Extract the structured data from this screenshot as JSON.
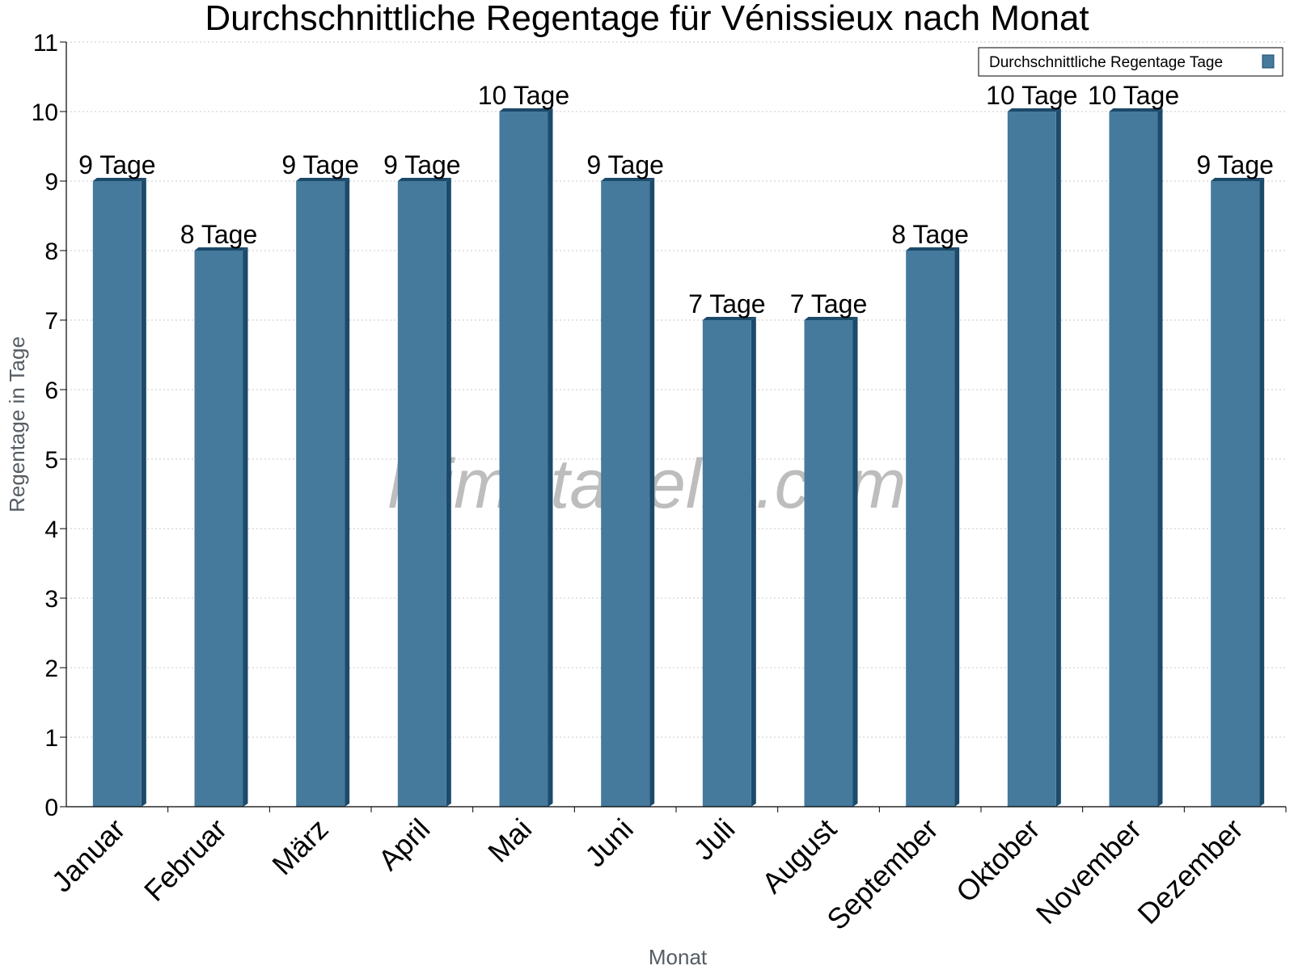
{
  "chart_data": {
    "type": "bar",
    "title": "Durchschnittliche Regentage für Vénissieux nach Monat",
    "xlabel": "Monat",
    "ylabel": "Regentage in Tage",
    "categories": [
      "Januar",
      "Februar",
      "März",
      "April",
      "Mai",
      "Juni",
      "Juli",
      "August",
      "September",
      "Oktober",
      "November",
      "Dezember"
    ],
    "series": [
      {
        "name": "Durchschnittliche Regentage Tage",
        "values": [
          9,
          8,
          9,
          9,
          10,
          9,
          7,
          7,
          8,
          10,
          10,
          9
        ],
        "data_labels": [
          "9 Tage",
          "8 Tage",
          "9 Tage",
          "9 Tage",
          "10 Tage",
          "9 Tage",
          "7 Tage",
          "7 Tage",
          "8 Tage",
          "10 Tage",
          "10 Tage",
          "9 Tage"
        ]
      }
    ],
    "yticks": [
      "0",
      "1",
      "2",
      "3",
      "4",
      "5",
      "6",
      "7",
      "8",
      "9",
      "10",
      "11"
    ],
    "ylim": [
      0,
      11
    ],
    "grid": true,
    "legend_position": "top-right",
    "watermark": "klimatabelle.com",
    "colors": {
      "bar": "#457a9c",
      "bar_side": "#1c4a6a",
      "bar_top": "#1c4a6a",
      "grid": "#c8c8c8",
      "axis": "#000000",
      "axis_label": "#555c63"
    }
  }
}
